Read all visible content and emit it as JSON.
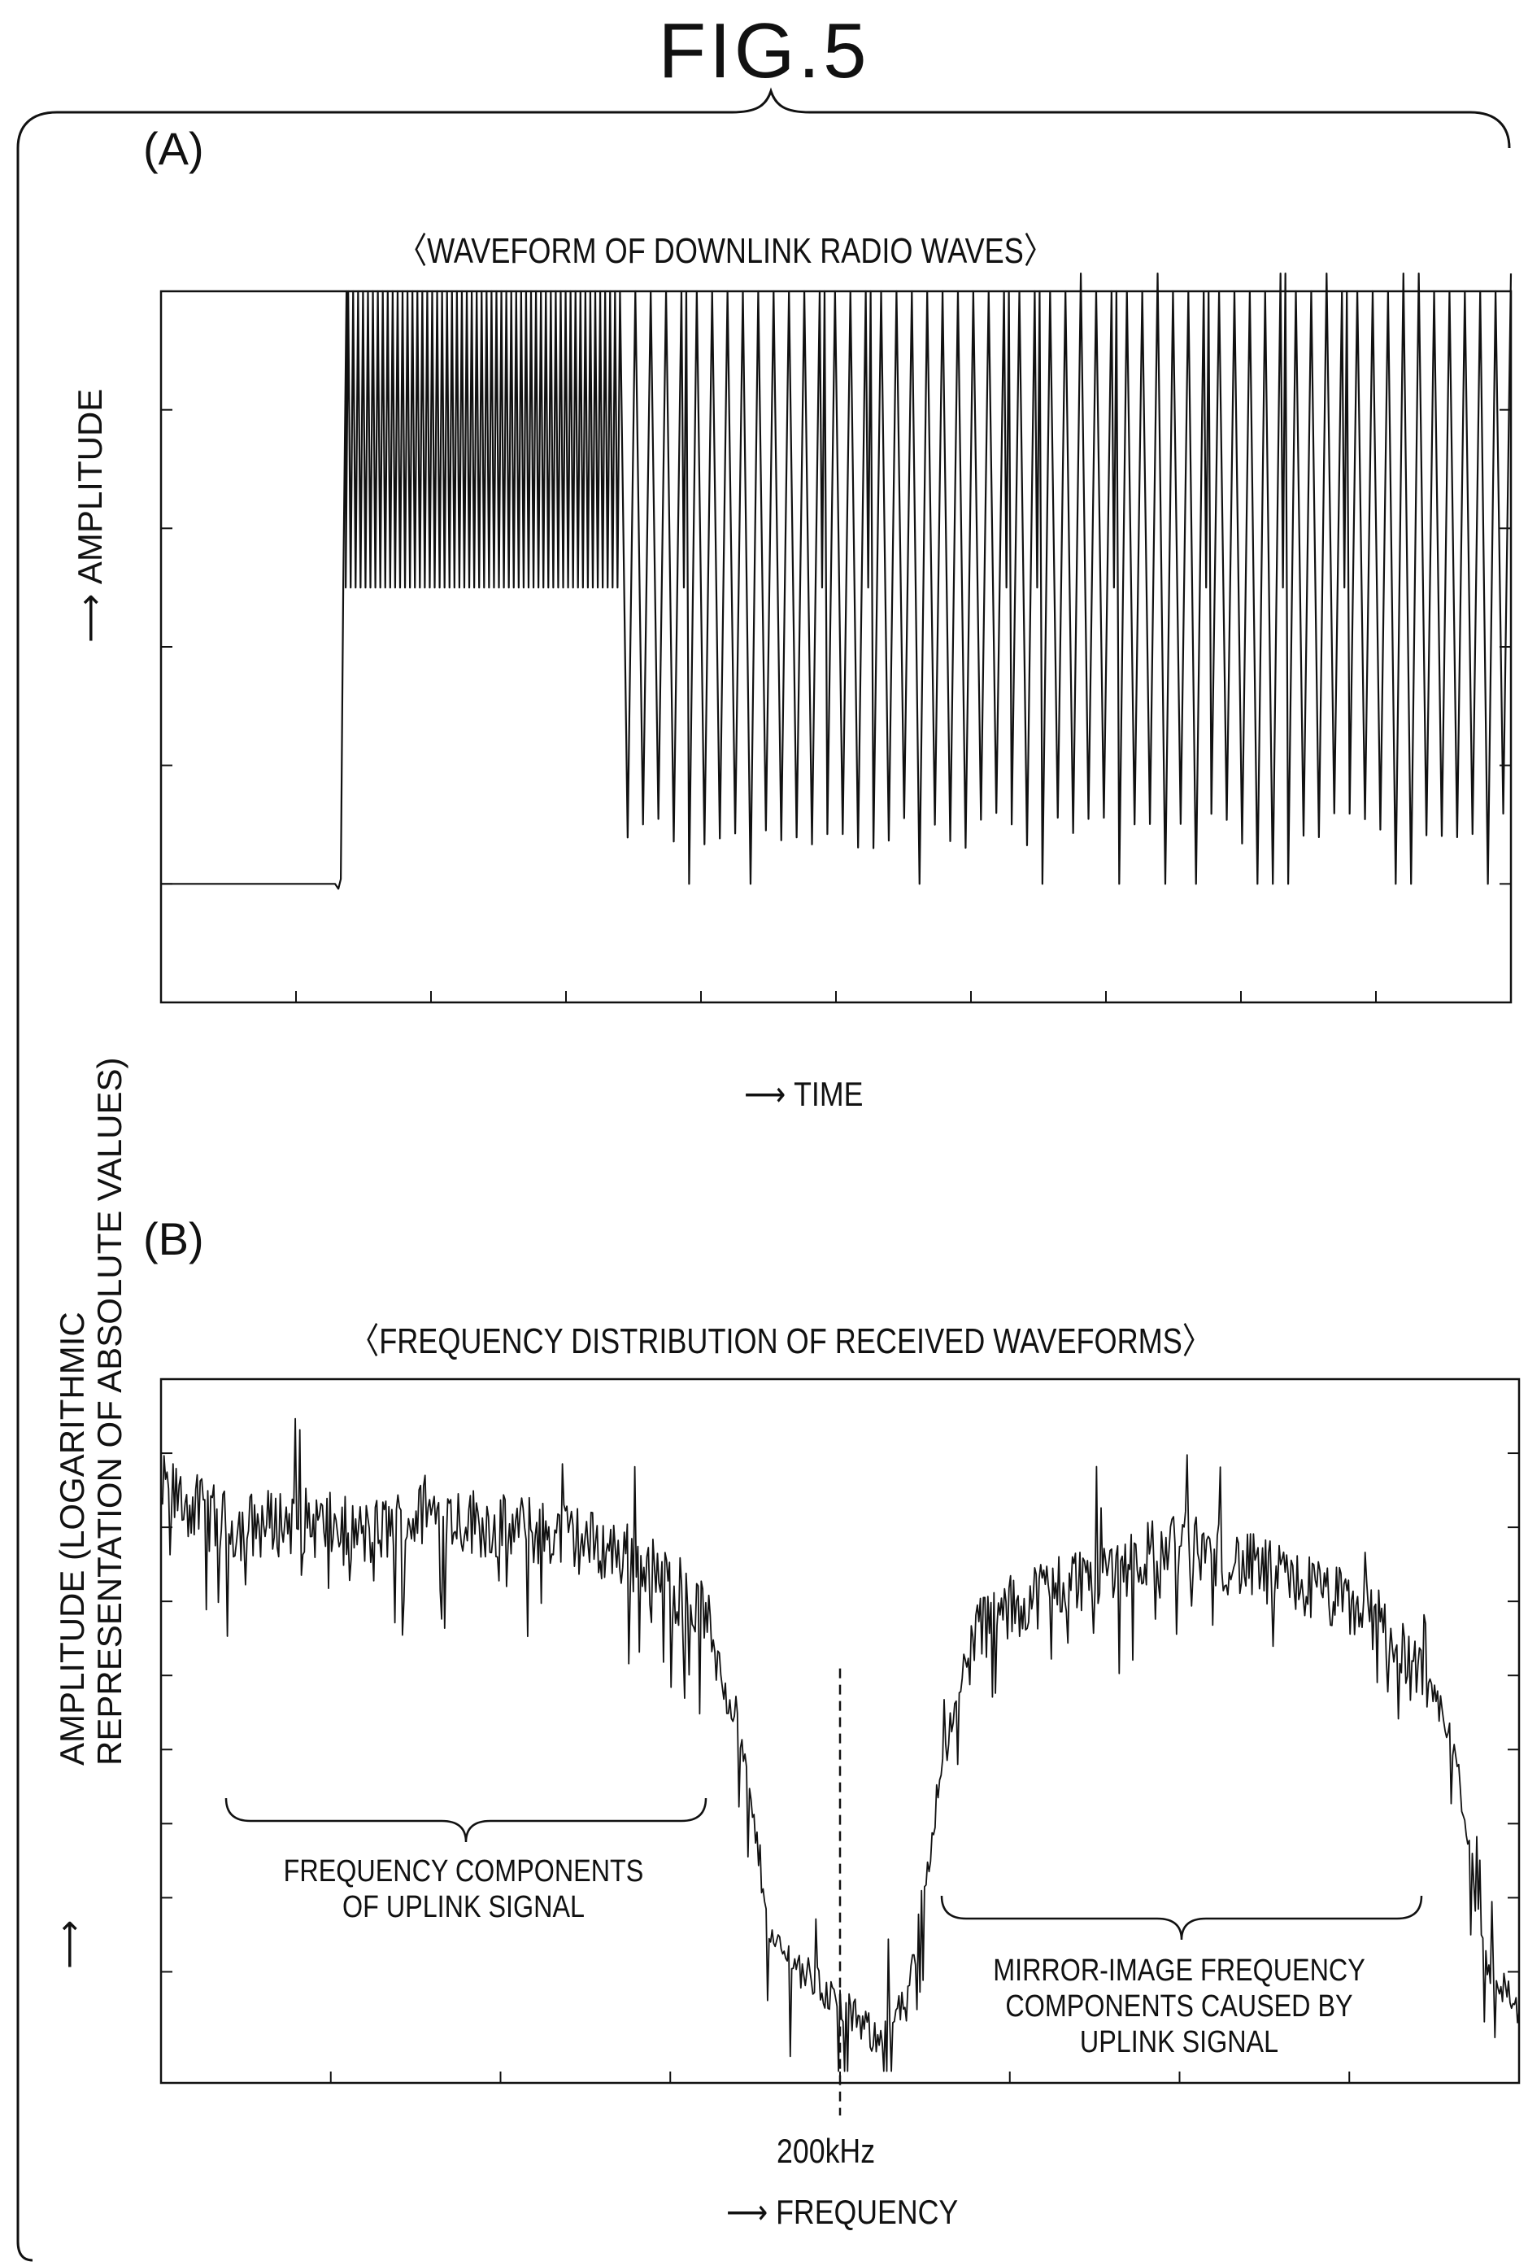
{
  "figure": {
    "title": "FIG.5",
    "color_line": "#111111"
  },
  "panel_a": {
    "label": "(A)",
    "title": "〈WAVEFORM OF DOWNLINK RADIO WAVES〉",
    "xlabel": "TIME",
    "ylabel": "AMPLITUDE"
  },
  "panel_b": {
    "label": "(B)",
    "title": "〈FREQUENCY DISTRIBUTION OF RECEIVED WAVEFORMS〉",
    "xlabel": "FREQUENCY",
    "ylabel_line1": "AMPLITUDE (LOGARITHMIC",
    "ylabel_line2": "REPRESENTATION OF ABSOLUTE VALUES)",
    "marker_label": "200kHz",
    "annotation_left_line1": "FREQUENCY COMPONENTS",
    "annotation_left_line2": "OF UPLINK SIGNAL",
    "annotation_right_line1": "MIRROR-IMAGE FREQUENCY",
    "annotation_right_line2": "COMPONENTS CAUSED BY",
    "annotation_right_line3": "UPLINK SIGNAL"
  },
  "chart_data": [
    {
      "type": "line",
      "title": "〈WAVEFORM OF DOWNLINK RADIO WAVES〉",
      "xlabel": "TIME",
      "ylabel": "AMPLITUDE",
      "xlim": [
        0,
        100
      ],
      "ylim": [
        0,
        6
      ],
      "x_ticks": 9,
      "y_ticks": 5,
      "segments": [
        {
          "x_start": 0,
          "x_end": 13.5,
          "pattern": "flat",
          "level": 1
        },
        {
          "x_start": 13.5,
          "x_end": 34,
          "pattern": "fast-oscillation",
          "low": 3.5,
          "high": 6
        },
        {
          "x_start": 34,
          "x_end": 100,
          "pattern": "deep-oscillation",
          "low": 1.3,
          "high": 6
        }
      ]
    },
    {
      "type": "line",
      "title": "〈FREQUENCY DISTRIBUTION OF RECEIVED WAVEFORMS〉",
      "xlabel": "FREQUENCY",
      "ylabel": "AMPLITUDE (LOGARITHMIC REPRESENTATION OF ABSOLUTE VALUES)",
      "xlim": [
        0,
        400
      ],
      "ylim": [
        0,
        9
      ],
      "y_scale": "log",
      "marker_x": 200,
      "marker_label": "200kHz",
      "envelope": {
        "x": [
          0,
          20,
          40,
          60,
          80,
          100,
          120,
          140,
          160,
          170,
          180,
          190,
          200,
          210,
          220,
          230,
          240,
          260,
          280,
          300,
          320,
          340,
          360,
          380,
          390,
          400
        ],
        "y": [
          7.6,
          7.1,
          7.2,
          7.0,
          7.3,
          7.1,
          7.0,
          6.7,
          6.0,
          4.6,
          1.8,
          1.4,
          1.0,
          0.6,
          1.0,
          4.1,
          5.8,
          6.3,
          6.6,
          6.9,
          6.6,
          6.3,
          5.9,
          4.5,
          1.6,
          0.9
        ]
      }
    }
  ]
}
